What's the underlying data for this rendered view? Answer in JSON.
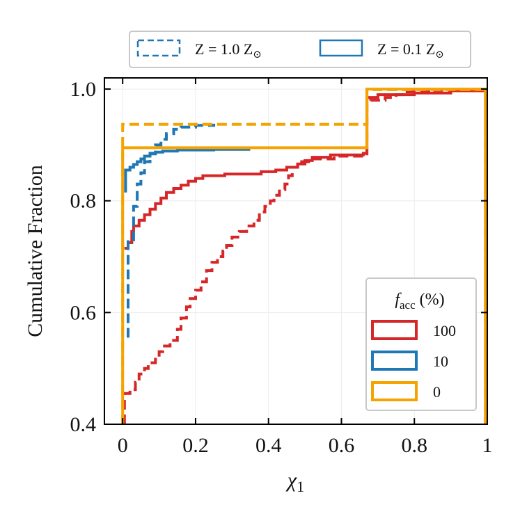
{
  "chart_data": {
    "type": "step",
    "xlabel": "χ1",
    "ylabel": "Cumulative Fraction",
    "xlim": [
      -0.05,
      1.0
    ],
    "ylim": [
      0.4,
      1.02
    ],
    "x_ticks": [
      0,
      0.2,
      0.4,
      0.6,
      0.8,
      1.0
    ],
    "x_tick_labels": [
      "0",
      "0.2",
      "0.4",
      "0.6",
      "0.8",
      "1"
    ],
    "y_ticks": [
      0.4,
      0.6,
      0.8,
      1.0
    ],
    "y_tick_labels": [
      "0.4",
      "0.6",
      "0.8",
      "1.0"
    ],
    "grid": true,
    "legend_metallicity": {
      "placement": "above",
      "entries": [
        {
          "label": "Z = 1.0 Z⊙",
          "linestyle": "dashed",
          "color": "#1f77b4"
        },
        {
          "label": "Z = 0.1 Z⊙",
          "linestyle": "solid",
          "color": "#1f77b4"
        }
      ]
    },
    "legend_facc": {
      "placement": "lower-right",
      "title_main": "f",
      "title_sub": "acc",
      "title_unit": "(%)",
      "entries": [
        {
          "label": "100",
          "color": "#d62728"
        },
        {
          "label": "10",
          "color": "#1f77b4"
        },
        {
          "label": "0",
          "color": "#f5a300"
        }
      ]
    },
    "series": [
      {
        "facc": "100",
        "metallicity": "1.0",
        "linestyle": "dashed",
        "color": "#d62728",
        "points": [
          [
            0.005,
            0.4
          ],
          [
            0.005,
            0.455
          ],
          [
            0.02,
            0.455
          ],
          [
            0.02,
            0.462
          ],
          [
            0.035,
            0.462
          ],
          [
            0.035,
            0.475
          ],
          [
            0.045,
            0.475
          ],
          [
            0.045,
            0.49
          ],
          [
            0.06,
            0.49
          ],
          [
            0.06,
            0.5
          ],
          [
            0.07,
            0.5
          ],
          [
            0.07,
            0.51
          ],
          [
            0.09,
            0.51
          ],
          [
            0.09,
            0.52
          ],
          [
            0.1,
            0.52
          ],
          [
            0.1,
            0.53
          ],
          [
            0.11,
            0.53
          ],
          [
            0.11,
            0.54
          ],
          [
            0.13,
            0.54
          ],
          [
            0.13,
            0.55
          ],
          [
            0.15,
            0.55
          ],
          [
            0.15,
            0.57
          ],
          [
            0.16,
            0.57
          ],
          [
            0.16,
            0.59
          ],
          [
            0.175,
            0.59
          ],
          [
            0.175,
            0.61
          ],
          [
            0.185,
            0.61
          ],
          [
            0.185,
            0.625
          ],
          [
            0.2,
            0.625
          ],
          [
            0.2,
            0.64
          ],
          [
            0.215,
            0.64
          ],
          [
            0.215,
            0.655
          ],
          [
            0.23,
            0.655
          ],
          [
            0.23,
            0.675
          ],
          [
            0.245,
            0.675
          ],
          [
            0.245,
            0.69
          ],
          [
            0.26,
            0.69
          ],
          [
            0.26,
            0.7
          ],
          [
            0.275,
            0.7
          ],
          [
            0.275,
            0.71
          ],
          [
            0.285,
            0.71
          ],
          [
            0.285,
            0.72
          ],
          [
            0.3,
            0.72
          ],
          [
            0.3,
            0.735
          ],
          [
            0.32,
            0.735
          ],
          [
            0.32,
            0.745
          ],
          [
            0.34,
            0.745
          ],
          [
            0.34,
            0.755
          ],
          [
            0.36,
            0.755
          ],
          [
            0.36,
            0.765
          ],
          [
            0.375,
            0.765
          ],
          [
            0.375,
            0.78
          ],
          [
            0.39,
            0.78
          ],
          [
            0.39,
            0.79
          ],
          [
            0.405,
            0.79
          ],
          [
            0.405,
            0.8
          ],
          [
            0.415,
            0.8
          ],
          [
            0.415,
            0.81
          ],
          [
            0.43,
            0.81
          ],
          [
            0.43,
            0.82
          ],
          [
            0.445,
            0.82
          ],
          [
            0.445,
            0.83
          ],
          [
            0.455,
            0.83
          ],
          [
            0.455,
            0.845
          ],
          [
            0.465,
            0.845
          ],
          [
            0.465,
            0.86
          ],
          [
            0.48,
            0.86
          ],
          [
            0.48,
            0.87
          ],
          [
            0.52,
            0.87
          ],
          [
            0.52,
            0.875
          ],
          [
            0.58,
            0.875
          ],
          [
            0.58,
            0.88
          ],
          [
            0.67,
            0.88
          ],
          [
            0.67,
            0.975
          ],
          [
            0.68,
            0.975
          ],
          [
            0.68,
            0.98
          ],
          [
            0.72,
            0.98
          ],
          [
            0.72,
            0.985
          ],
          [
            0.75,
            0.985
          ],
          [
            0.75,
            0.99
          ],
          [
            0.78,
            0.99
          ],
          [
            0.78,
            0.995
          ],
          [
            0.85,
            0.995
          ],
          [
            0.85,
            0.998
          ],
          [
            0.995,
            0.998
          ],
          [
            0.995,
            0.4
          ]
        ]
      },
      {
        "facc": "100",
        "metallicity": "0.1",
        "linestyle": "solid",
        "color": "#d62728",
        "points": [
          [
            0.005,
            0.715
          ],
          [
            0.015,
            0.715
          ],
          [
            0.015,
            0.725
          ],
          [
            0.025,
            0.725
          ],
          [
            0.025,
            0.745
          ],
          [
            0.03,
            0.745
          ],
          [
            0.03,
            0.755
          ],
          [
            0.045,
            0.755
          ],
          [
            0.045,
            0.765
          ],
          [
            0.06,
            0.765
          ],
          [
            0.06,
            0.775
          ],
          [
            0.075,
            0.775
          ],
          [
            0.075,
            0.785
          ],
          [
            0.09,
            0.785
          ],
          [
            0.09,
            0.795
          ],
          [
            0.105,
            0.795
          ],
          [
            0.105,
            0.805
          ],
          [
            0.12,
            0.805
          ],
          [
            0.12,
            0.815
          ],
          [
            0.14,
            0.815
          ],
          [
            0.14,
            0.822
          ],
          [
            0.16,
            0.822
          ],
          [
            0.16,
            0.828
          ],
          [
            0.18,
            0.828
          ],
          [
            0.18,
            0.835
          ],
          [
            0.2,
            0.835
          ],
          [
            0.2,
            0.84
          ],
          [
            0.22,
            0.84
          ],
          [
            0.22,
            0.845
          ],
          [
            0.28,
            0.845
          ],
          [
            0.28,
            0.848
          ],
          [
            0.38,
            0.848
          ],
          [
            0.38,
            0.852
          ],
          [
            0.42,
            0.852
          ],
          [
            0.42,
            0.855
          ],
          [
            0.45,
            0.855
          ],
          [
            0.45,
            0.86
          ],
          [
            0.48,
            0.86
          ],
          [
            0.48,
            0.866
          ],
          [
            0.5,
            0.866
          ],
          [
            0.5,
            0.872
          ],
          [
            0.52,
            0.872
          ],
          [
            0.52,
            0.878
          ],
          [
            0.57,
            0.878
          ],
          [
            0.57,
            0.882
          ],
          [
            0.66,
            0.882
          ],
          [
            0.66,
            0.885
          ],
          [
            0.67,
            0.885
          ],
          [
            0.67,
            0.985
          ],
          [
            0.7,
            0.985
          ],
          [
            0.7,
            0.99
          ],
          [
            0.8,
            0.99
          ],
          [
            0.8,
            0.993
          ],
          [
            0.9,
            0.993
          ],
          [
            0.9,
            0.997
          ],
          [
            0.995,
            0.997
          ],
          [
            0.995,
            0.4
          ]
        ]
      },
      {
        "facc": "10",
        "metallicity": "1.0",
        "linestyle": "dashed",
        "color": "#1f77b4",
        "points": [
          [
            0.015,
            0.555
          ],
          [
            0.015,
            0.73
          ],
          [
            0.03,
            0.73
          ],
          [
            0.03,
            0.79
          ],
          [
            0.04,
            0.79
          ],
          [
            0.04,
            0.83
          ],
          [
            0.05,
            0.83
          ],
          [
            0.05,
            0.85
          ],
          [
            0.06,
            0.85
          ],
          [
            0.06,
            0.87
          ],
          [
            0.075,
            0.87
          ],
          [
            0.075,
            0.885
          ],
          [
            0.09,
            0.885
          ],
          [
            0.09,
            0.9
          ],
          [
            0.105,
            0.9
          ],
          [
            0.105,
            0.91
          ],
          [
            0.12,
            0.91
          ],
          [
            0.12,
            0.92
          ],
          [
            0.14,
            0.92
          ],
          [
            0.14,
            0.928
          ],
          [
            0.16,
            0.928
          ],
          [
            0.16,
            0.932
          ],
          [
            0.2,
            0.932
          ],
          [
            0.2,
            0.935
          ],
          [
            0.25,
            0.935
          ],
          [
            0.25,
            0.938
          ]
        ]
      },
      {
        "facc": "10",
        "metallicity": "0.1",
        "linestyle": "solid",
        "color": "#1f77b4",
        "points": [
          [
            0.008,
            0.815
          ],
          [
            0.008,
            0.855
          ],
          [
            0.02,
            0.855
          ],
          [
            0.02,
            0.86
          ],
          [
            0.03,
            0.86
          ],
          [
            0.03,
            0.865
          ],
          [
            0.04,
            0.865
          ],
          [
            0.04,
            0.87
          ],
          [
            0.05,
            0.87
          ],
          [
            0.05,
            0.875
          ],
          [
            0.06,
            0.875
          ],
          [
            0.06,
            0.88
          ],
          [
            0.075,
            0.88
          ],
          [
            0.075,
            0.884
          ],
          [
            0.09,
            0.884
          ],
          [
            0.09,
            0.887
          ],
          [
            0.11,
            0.887
          ],
          [
            0.11,
            0.889
          ],
          [
            0.15,
            0.889
          ],
          [
            0.15,
            0.891
          ],
          [
            0.25,
            0.891
          ],
          [
            0.25,
            0.892
          ],
          [
            0.35,
            0.892
          ]
        ]
      },
      {
        "facc": "0",
        "metallicity": "1.0",
        "linestyle": "dashed",
        "color": "#f5a300",
        "points": [
          [
            0.0,
            0.4
          ],
          [
            0.0,
            0.937
          ],
          [
            0.67,
            0.937
          ],
          [
            0.67,
            0.999
          ],
          [
            0.995,
            0.999
          ],
          [
            0.995,
            0.4
          ]
        ]
      },
      {
        "facc": "0",
        "metallicity": "0.1",
        "linestyle": "solid",
        "color": "#f5a300",
        "points": [
          [
            0.0,
            0.4
          ],
          [
            0.0,
            0.895
          ],
          [
            0.67,
            0.895
          ],
          [
            0.67,
            1.0
          ],
          [
            0.995,
            1.0
          ],
          [
            0.995,
            0.4
          ]
        ]
      }
    ]
  }
}
